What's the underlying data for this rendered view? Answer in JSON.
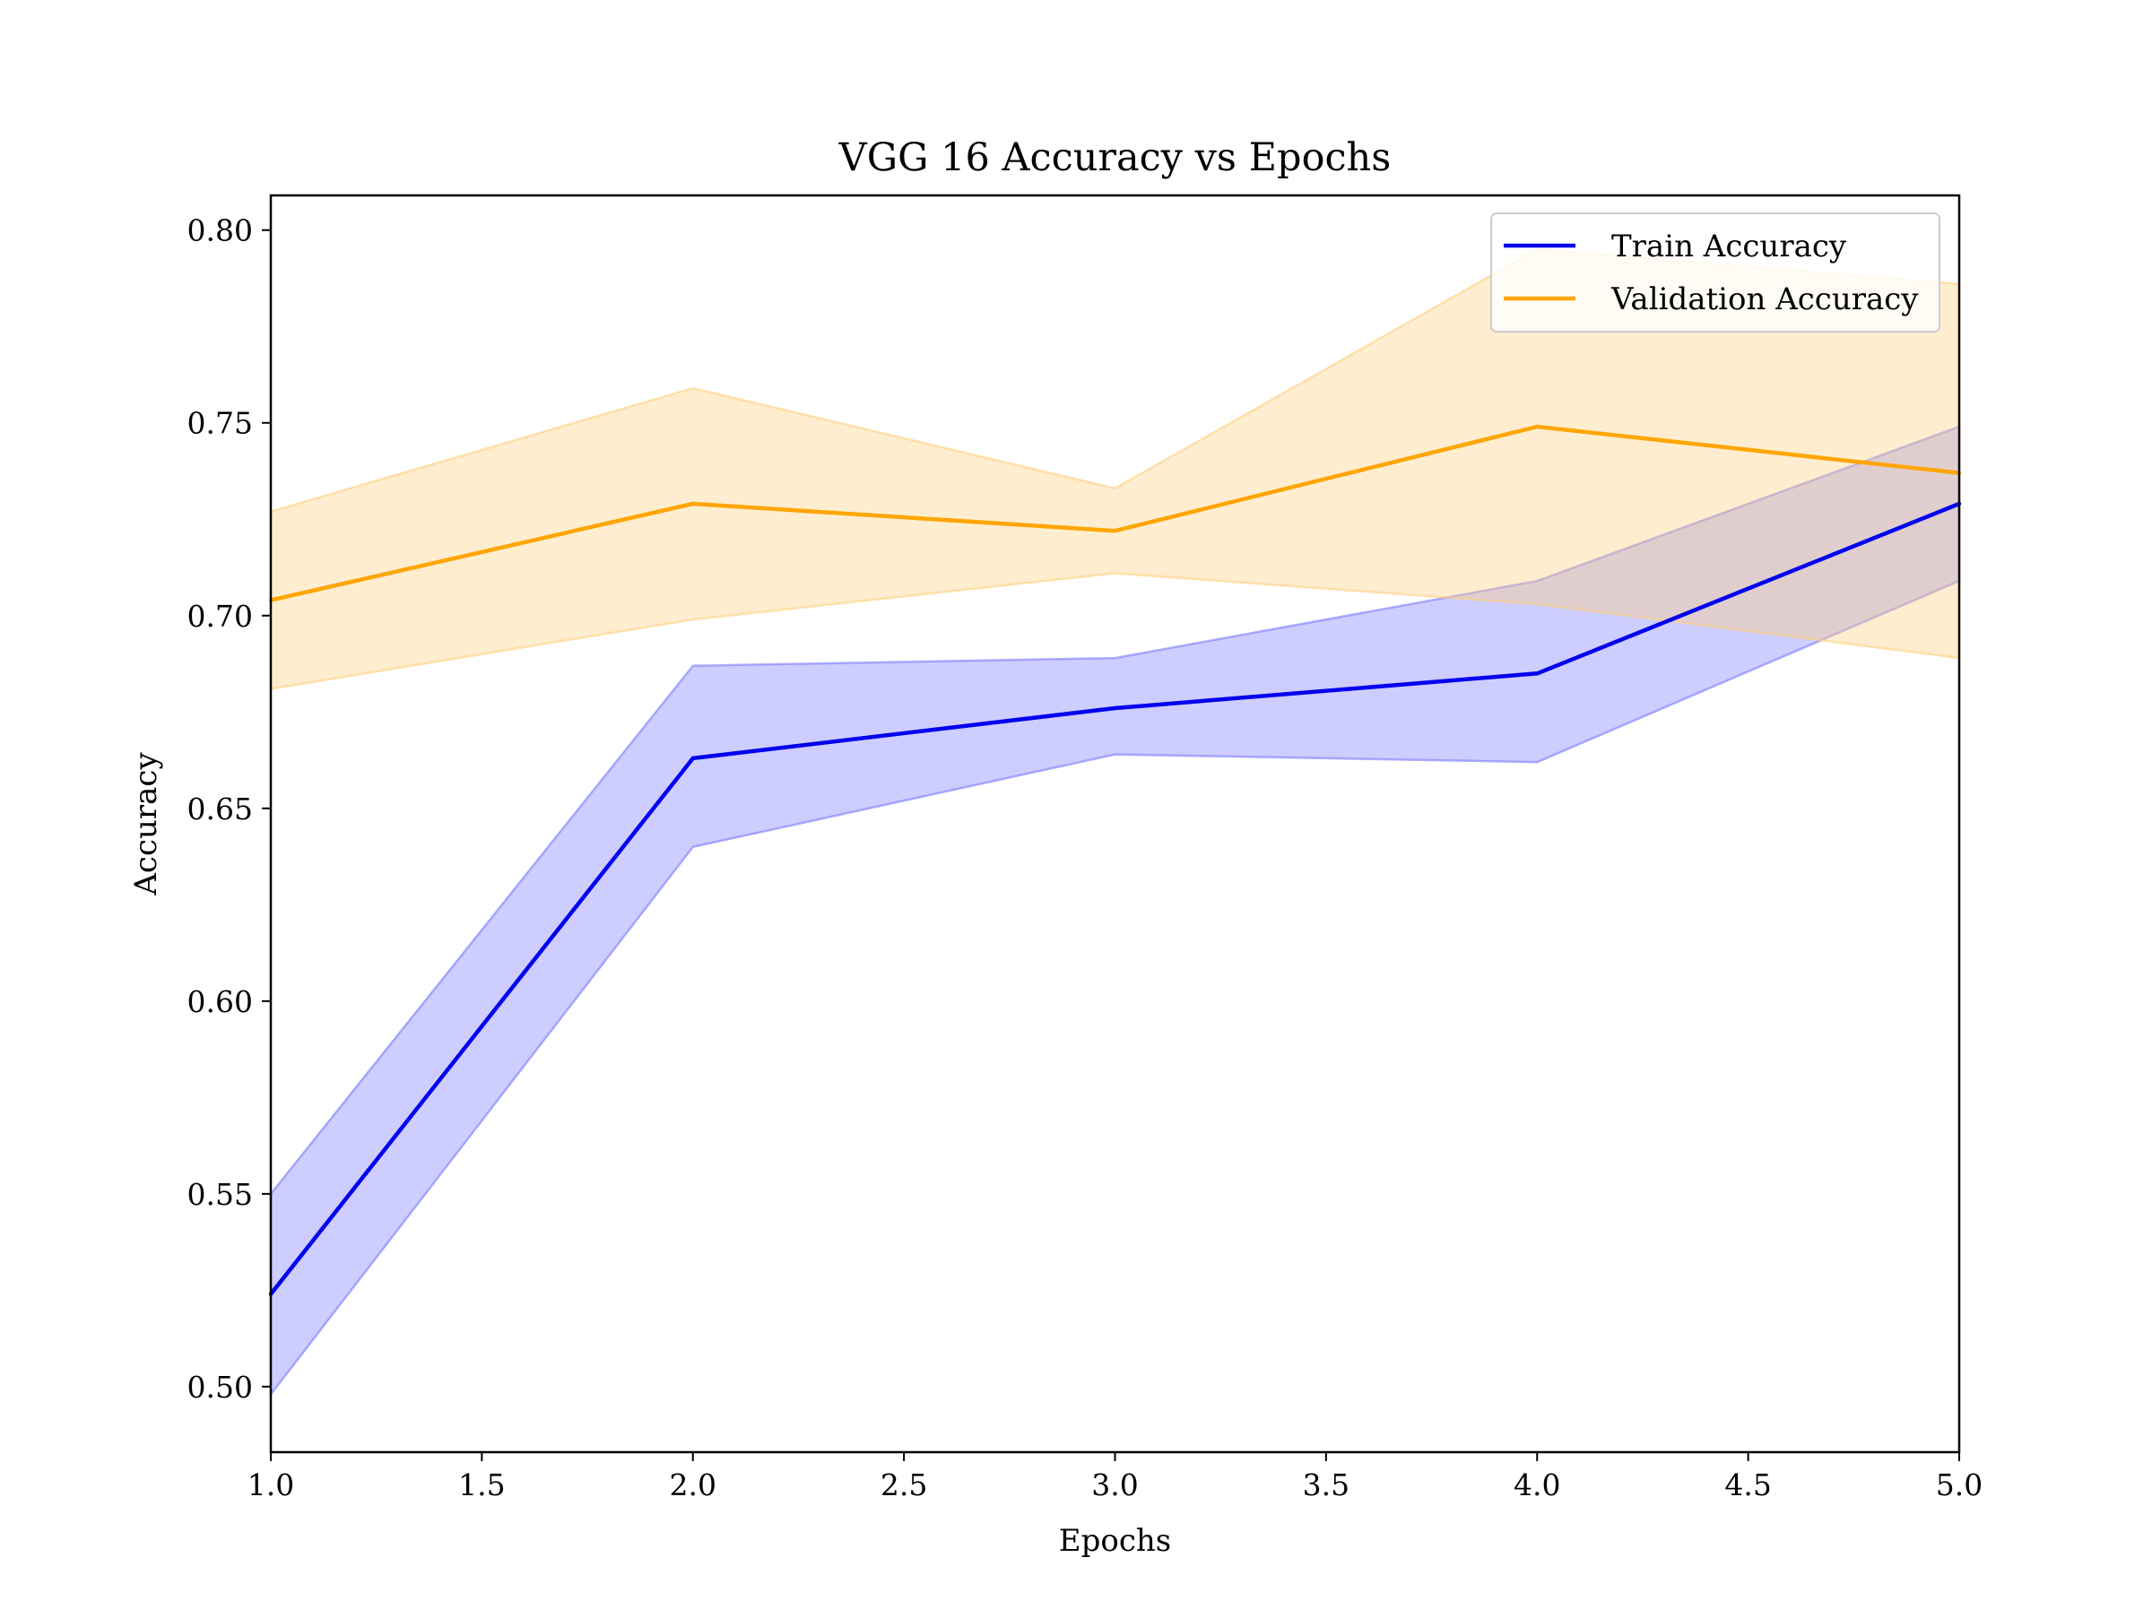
{
  "chart_data": {
    "type": "line",
    "title": "VGG 16 Accuracy vs Epochs",
    "xlabel": "Epochs",
    "ylabel": "Accuracy",
    "xlim": [
      1.0,
      5.0
    ],
    "ylim": [
      0.483,
      0.809
    ],
    "x_ticks": [
      "1.0",
      "1.5",
      "2.0",
      "2.5",
      "3.0",
      "3.5",
      "4.0",
      "4.5",
      "5.0"
    ],
    "y_ticks": [
      "0.50",
      "0.55",
      "0.60",
      "0.65",
      "0.70",
      "0.75",
      "0.80"
    ],
    "grid": false,
    "legend_position": "upper right",
    "x": [
      1,
      2,
      3,
      4,
      5
    ],
    "series": [
      {
        "name": "Train Accuracy",
        "color": "#0000ee",
        "values": [
          0.524,
          0.663,
          0.676,
          0.685,
          0.729
        ],
        "band_lower": [
          0.498,
          0.64,
          0.664,
          0.662,
          0.709
        ],
        "band_upper": [
          0.55,
          0.687,
          0.689,
          0.709,
          0.749
        ],
        "band_color": "#7b7bff"
      },
      {
        "name": "Validation Accuracy",
        "color": "#ffa500",
        "values": [
          0.704,
          0.729,
          0.722,
          0.749,
          0.737
        ],
        "band_lower": [
          0.681,
          0.699,
          0.711,
          0.703,
          0.689
        ],
        "band_upper": [
          0.727,
          0.759,
          0.733,
          0.795,
          0.786
        ],
        "band_color": "#ffd080"
      }
    ]
  }
}
